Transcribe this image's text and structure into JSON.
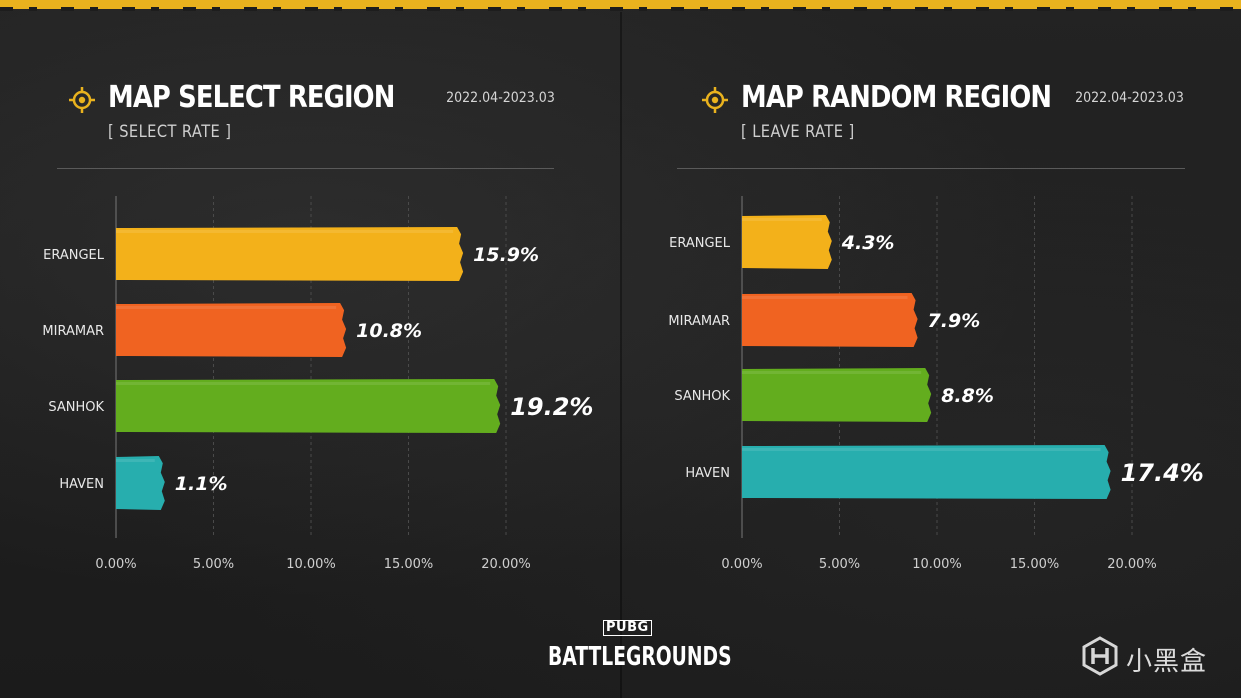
{
  "colors": {
    "background": "#1d1d1d",
    "accent_yellow": "#e9b21e",
    "erangel": "#f3b11a",
    "miramar": "#f06321",
    "sanhok": "#63ad1e",
    "haven": "#27aeae"
  },
  "icons": {
    "title_marker": "crosshair-icon",
    "watermark": "xiaoheihe-logo-icon"
  },
  "left": {
    "title": "MAP SELECT REGION",
    "subtitle": "[ SELECT RATE ]",
    "date_range": "2022.04-2023.03"
  },
  "right": {
    "title": "MAP RANDOM REGION",
    "subtitle": "[ LEAVE RATE ]",
    "date_range": "2022.04-2023.03"
  },
  "branding": {
    "pubg": "PUBG",
    "battlegrounds": "BATTLEGROUNDS"
  },
  "watermark": {
    "text": "小黑盒"
  },
  "chart_data": [
    {
      "type": "bar",
      "orientation": "horizontal",
      "title": "MAP SELECT REGION",
      "subtitle": "[ SELECT RATE ]",
      "categories": [
        "ERANGEL",
        "MIRAMAR",
        "SANHOK",
        "HAVEN"
      ],
      "values": [
        15.9,
        10.8,
        19.2,
        1.1
      ],
      "value_labels": [
        "15.9%",
        "10.8%",
        "19.2%",
        "1.1%"
      ],
      "bar_lengths_on_axis": [
        17.7,
        11.7,
        19.6,
        2.4
      ],
      "bar_colors": [
        "#f3b11a",
        "#f06321",
        "#63ad1e",
        "#27aeae"
      ],
      "xlim": [
        0,
        22.5
      ],
      "xticks": [
        0,
        5,
        10,
        15,
        20
      ],
      "xtick_labels": [
        "0.00%",
        "5.00%",
        "10.00%",
        "15.00%",
        "20.00%"
      ],
      "grid": "vertical-dashed",
      "legend": "none"
    },
    {
      "type": "bar",
      "orientation": "horizontal",
      "title": "MAP RANDOM REGION",
      "subtitle": "[ LEAVE RATE ]",
      "categories": [
        "ERANGEL",
        "MIRAMAR",
        "SANHOK",
        "HAVEN"
      ],
      "values": [
        4.3,
        7.9,
        8.8,
        17.4
      ],
      "value_labels": [
        "4.3%",
        "7.9%",
        "8.8%",
        "17.4%"
      ],
      "bar_lengths_on_axis": [
        4.5,
        8.9,
        9.6,
        18.8
      ],
      "bar_colors": [
        "#f3b11a",
        "#f06321",
        "#63ad1e",
        "#27aeae"
      ],
      "xlim": [
        0,
        22.5
      ],
      "xticks": [
        0,
        5,
        10,
        15,
        20
      ],
      "xtick_labels": [
        "0.00%",
        "5.00%",
        "10.00%",
        "15.00%",
        "20.00%"
      ],
      "grid": "vertical-dashed",
      "legend": "none"
    }
  ]
}
